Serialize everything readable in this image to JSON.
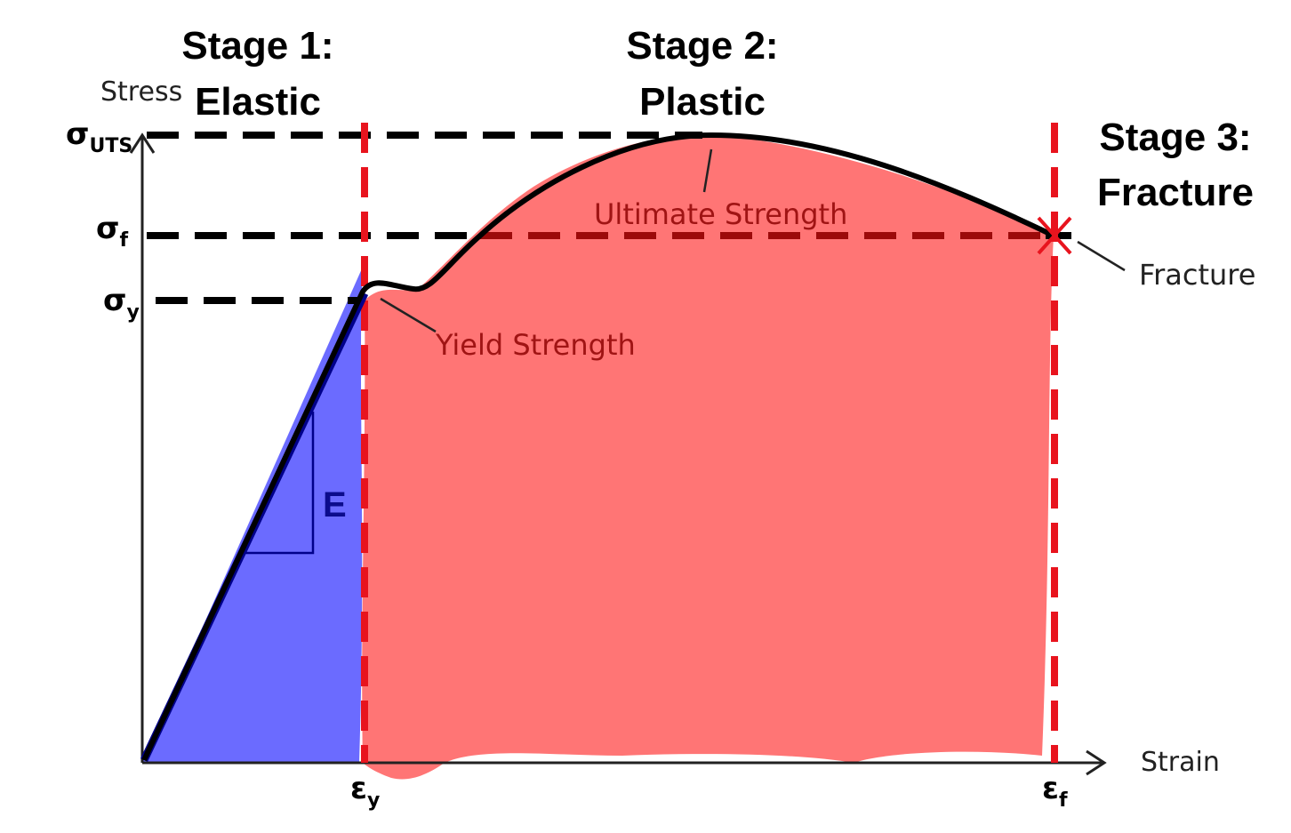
{
  "stages": {
    "stage1": {
      "title": "Stage 1:",
      "name": "Elastic"
    },
    "stage2": {
      "title": "Stage 2:",
      "name": "Plastic"
    },
    "stage3": {
      "title": "Stage 3:",
      "name": "Fracture"
    }
  },
  "axes": {
    "y_label": "Stress",
    "x_label": "Strain"
  },
  "y_marks": {
    "uts": {
      "symbol": "σ",
      "sub": "UTS"
    },
    "fracture": {
      "symbol": "σ",
      "sub": "f"
    },
    "yield": {
      "symbol": "σ",
      "sub": "y"
    }
  },
  "x_marks": {
    "yield": {
      "symbol": "ε",
      "sub": "y"
    },
    "fracture": {
      "symbol": "ε",
      "sub": "f"
    }
  },
  "annotations": {
    "ultimate": "Ultimate Strength",
    "yield": "Yield Strength",
    "fracture": "Fracture",
    "modulus": "E"
  },
  "colors": {
    "elastic_fill": "#6b6bff",
    "plastic_fill": "#ff7575",
    "curve": "#000000",
    "elastic_line": "#00008b",
    "boundary": "#e8141e"
  }
}
